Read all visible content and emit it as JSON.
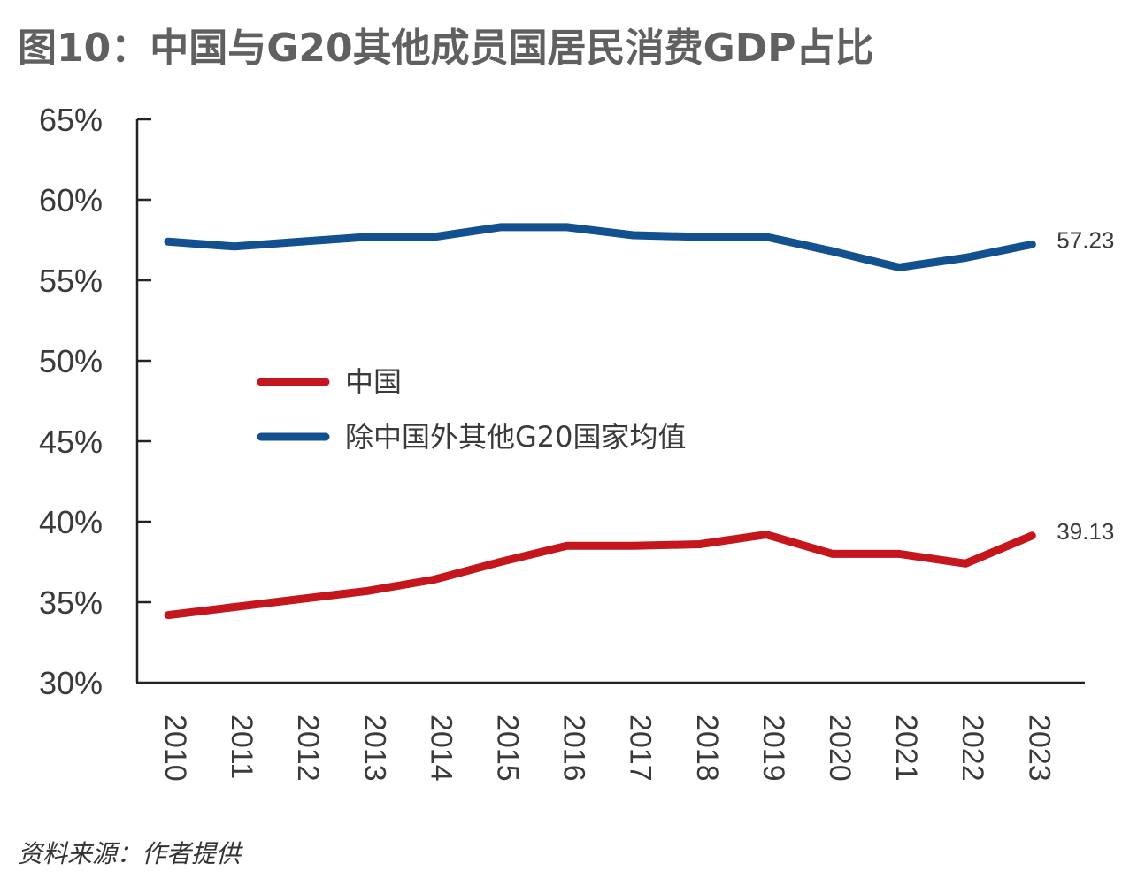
{
  "title": "图10：中国与G20其他成员国居民消费GDP占比",
  "source": "资料来源：作者提供",
  "chart_data": {
    "type": "line",
    "title": "图10：中国与G20其他成员国居民消费GDP占比",
    "xlabel": "",
    "ylabel": "",
    "x": [
      "2010",
      "2011",
      "2012",
      "2013",
      "2014",
      "2015",
      "2016",
      "2017",
      "2018",
      "2019",
      "2020",
      "2021",
      "2022",
      "2023"
    ],
    "ylim": [
      30,
      65
    ],
    "yticks": [
      30,
      35,
      40,
      45,
      50,
      55,
      60,
      65
    ],
    "ytick_labels": [
      "30%",
      "35%",
      "40%",
      "45%",
      "50%",
      "55%",
      "60%",
      "65%"
    ],
    "grid": false,
    "legend_position": "center-left",
    "series": [
      {
        "name": "中国",
        "color": "#c4161c",
        "values": [
          34.2,
          34.7,
          35.2,
          35.7,
          36.4,
          37.5,
          38.5,
          38.5,
          38.6,
          39.2,
          38.0,
          38.0,
          37.4,
          39.13
        ],
        "end_label": "39.13"
      },
      {
        "name": "除中国外其他G20国家均值",
        "color": "#13508f",
        "values": [
          57.4,
          57.1,
          57.4,
          57.7,
          57.7,
          58.3,
          58.3,
          57.8,
          57.7,
          57.7,
          56.8,
          55.8,
          56.4,
          57.23
        ],
        "end_label": "57.23"
      }
    ]
  }
}
